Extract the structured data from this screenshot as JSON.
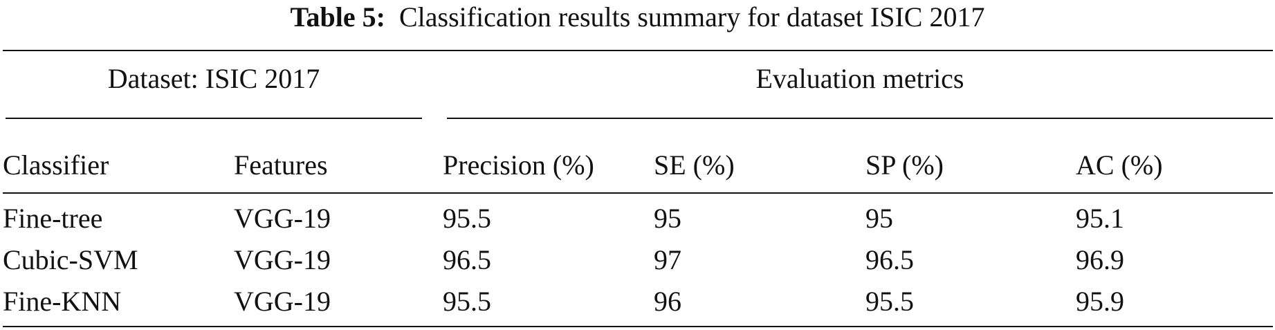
{
  "caption": {
    "label": "Table 5:",
    "text": "Classification results summary for dataset ISIC 2017"
  },
  "group_headers": {
    "left": "Dataset: ISIC 2017",
    "right": "Evaluation metrics"
  },
  "columns": [
    "Classifier",
    "Features",
    "Precision (%)",
    "SE (%)",
    "SP (%)",
    "AC (%)"
  ],
  "rows": [
    [
      "Fine-tree",
      "VGG-19",
      "95.5",
      "95",
      "95",
      "95.1"
    ],
    [
      "Cubic-SVM",
      "VGG-19",
      "96.5",
      "97",
      "96.5",
      "96.9"
    ],
    [
      "Fine-KNN",
      "VGG-19",
      "95.5",
      "96",
      "95.5",
      "95.9"
    ]
  ]
}
